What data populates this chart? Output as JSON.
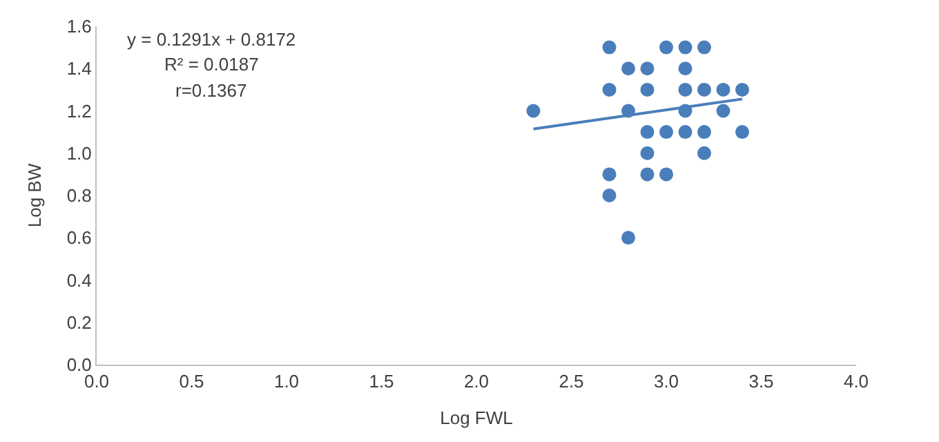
{
  "chart_data": {
    "type": "scatter",
    "xlabel": "Log FWL",
    "ylabel": "Log BW",
    "annotations": [
      "y = 0.1291x + 0.8172",
      "R² = 0.0187",
      "r=0.1367"
    ],
    "series": [
      {
        "marker": "circle",
        "color": "#4a7ebb",
        "x": [
          2.7,
          3.0,
          3.1,
          3.2,
          2.8,
          2.9,
          3.1,
          2.7,
          2.9,
          3.1,
          3.2,
          3.3,
          3.4,
          2.3,
          2.8,
          3.1,
          3.3,
          2.9,
          3.0,
          3.1,
          3.2,
          3.4,
          2.9,
          3.2,
          2.7,
          2.9,
          3.0,
          2.7,
          2.8
        ],
        "values": [
          1.5,
          1.5,
          1.5,
          1.5,
          1.4,
          1.4,
          1.4,
          1.3,
          1.3,
          1.3,
          1.3,
          1.3,
          1.3,
          1.2,
          1.2,
          1.2,
          1.2,
          1.1,
          1.1,
          1.1,
          1.1,
          1.1,
          1.0,
          1.0,
          0.9,
          0.9,
          0.9,
          0.8,
          0.6
        ]
      },
      {
        "type": "line",
        "color": "#4a7ebb",
        "x": [
          2.3,
          3.4
        ],
        "values": [
          1.114,
          1.256
        ]
      }
    ],
    "xlim": [
      0,
      4
    ],
    "xticks": [
      {
        "value": 0,
        "label": "0.0"
      },
      {
        "value": 0.5,
        "label": "0.5"
      },
      {
        "value": 1,
        "label": "1.0"
      },
      {
        "value": 1.5,
        "label": "1.5"
      },
      {
        "value": 2,
        "label": "2.0"
      },
      {
        "value": 2.5,
        "label": "2.5"
      },
      {
        "value": 3,
        "label": "3.0"
      },
      {
        "value": 3.5,
        "label": "3.5"
      },
      {
        "value": 4,
        "label": "4.0"
      }
    ],
    "ylim": [
      0,
      1.6
    ],
    "yticks": [
      {
        "value": 0,
        "label": "0.0"
      },
      {
        "value": 0.2,
        "label": "0.2"
      },
      {
        "value": 0.4,
        "label": "0.4"
      },
      {
        "value": 0.6,
        "label": "0.6"
      },
      {
        "value": 0.8,
        "label": "0.8"
      },
      {
        "value": 1,
        "label": "1.0"
      },
      {
        "value": 1.2,
        "label": "1.2"
      },
      {
        "value": 1.4,
        "label": "1.4"
      },
      {
        "value": 1.6,
        "label": "1.6"
      }
    ]
  }
}
